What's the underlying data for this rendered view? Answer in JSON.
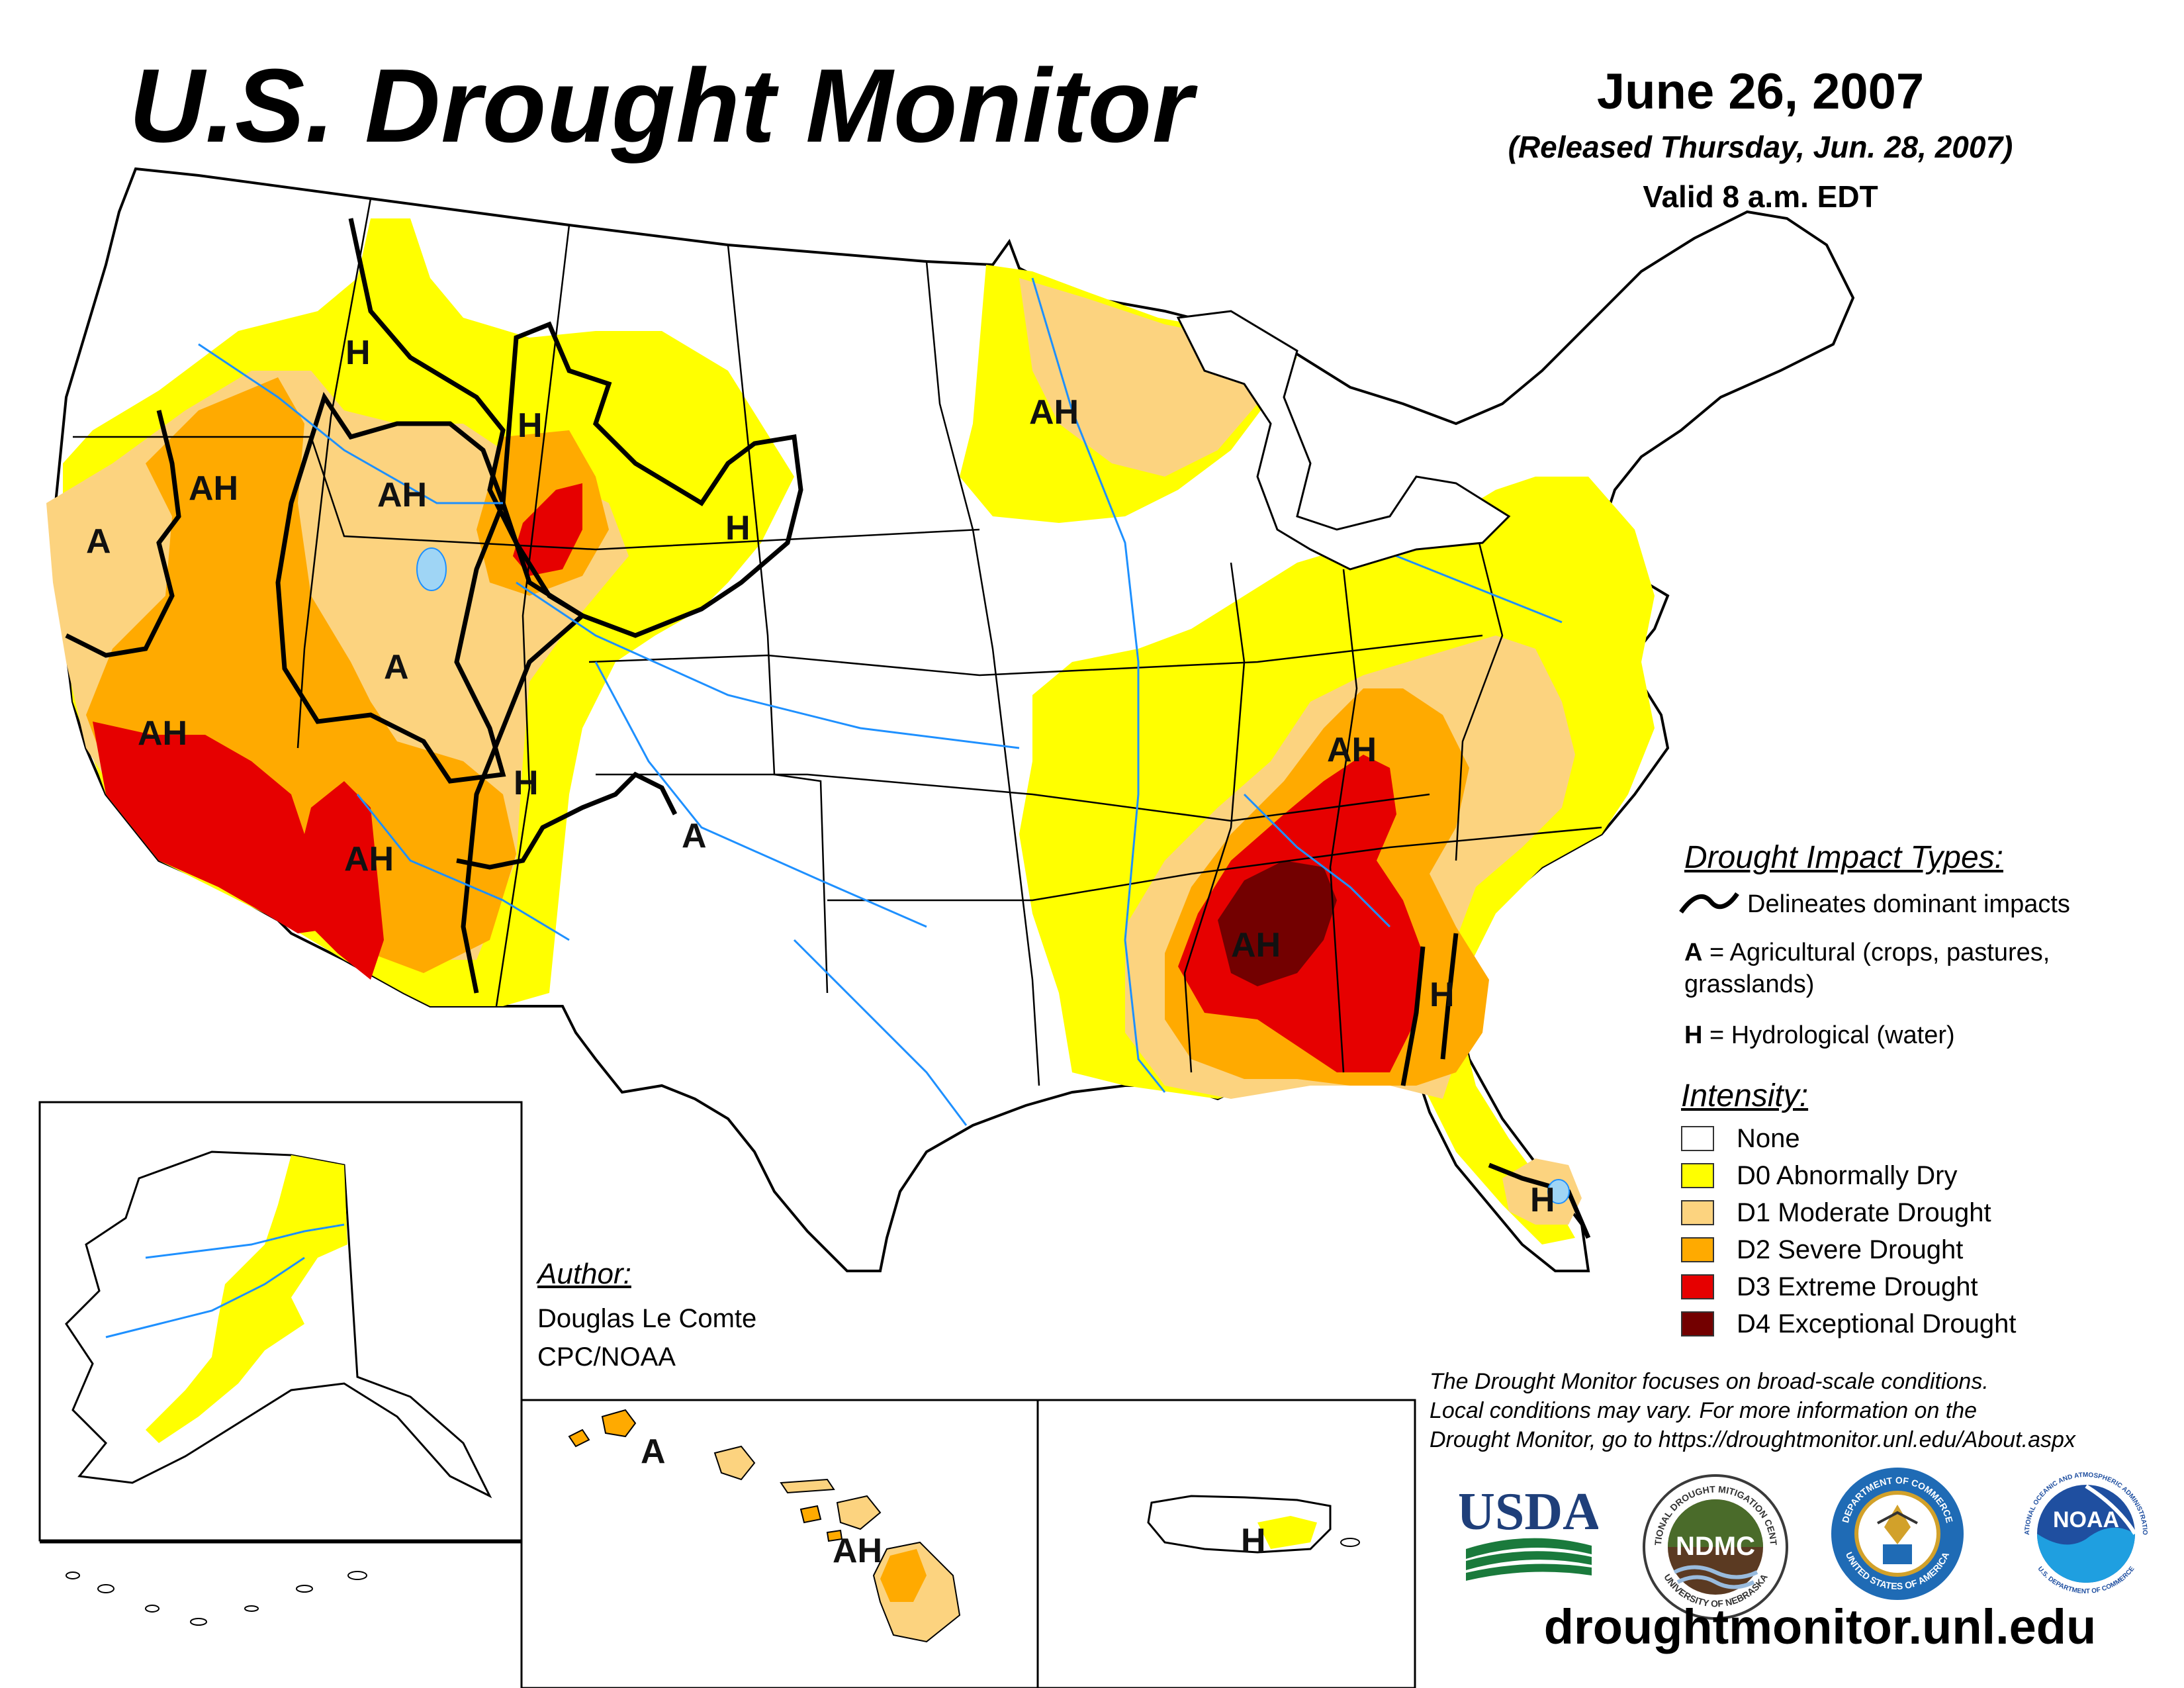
{
  "header": {
    "title": "U.S. Drought Monitor",
    "date": "June 26, 2007",
    "released": "(Released Thursday, Jun. 28, 2007)",
    "valid": "Valid 8 a.m. EDT"
  },
  "impact_legend": {
    "heading": "Drought Impact Types:",
    "delineates": "Delineates dominant impacts",
    "ag_key": "A",
    "ag_text": "= Agricultural (crops, pastures,",
    "ag_text2": "grasslands)",
    "hyd_key": "H",
    "hyd_text": "= Hydrological (water)"
  },
  "intensity_legend": {
    "heading": "Intensity:",
    "items": [
      {
        "label": "None",
        "color": "#ffffff"
      },
      {
        "label": "D0 Abnormally Dry",
        "color": "#ffff00"
      },
      {
        "label": "D1 Moderate Drought",
        "color": "#fcd37f"
      },
      {
        "label": "D2 Severe Drought",
        "color": "#ffaa00"
      },
      {
        "label": "D3 Extreme Drought",
        "color": "#e60000"
      },
      {
        "label": "D4 Exceptional Drought",
        "color": "#730000"
      }
    ]
  },
  "author": {
    "heading": "Author:",
    "name": "Douglas Le Comte",
    "org": "CPC/NOAA"
  },
  "footnote": {
    "line1": "The Drought Monitor focuses on broad-scale conditions.",
    "line2": "Local conditions may vary. For more information on the",
    "line3": "Drought Monitor, go to https://droughtmonitor.unl.edu/About.aspx"
  },
  "logos": {
    "usda": "USDA",
    "ndmc": "NDMC",
    "ndmc_ring_top": "NATIONAL DROUGHT MITIGATION CENTER",
    "ndmc_ring_bottom": "UNIVERSITY OF NEBRASKA",
    "doc_ring_top": "DEPARTMENT OF COMMERCE",
    "doc_ring_bottom": "UNITED STATES OF AMERICA",
    "noaa": "NOAA",
    "noaa_ring_top": "NATIONAL OCEANIC AND ATMOSPHERIC ADMINISTRATION",
    "noaa_ring_bottom": "U.S. DEPARTMENT OF COMMERCE"
  },
  "url": "droughtmonitor.unl.edu",
  "map_labels": [
    {
      "id": "ca-north",
      "text": "A"
    },
    {
      "id": "nv-north",
      "text": "AH"
    },
    {
      "id": "id-south",
      "text": "AH"
    },
    {
      "id": "mt-west",
      "text": "H"
    },
    {
      "id": "wy-west",
      "text": "H"
    },
    {
      "id": "wy-east",
      "text": "H"
    },
    {
      "id": "ut",
      "text": "A"
    },
    {
      "id": "ca-south",
      "text": "AH"
    },
    {
      "id": "az",
      "text": "AH"
    },
    {
      "id": "co-west",
      "text": "H"
    },
    {
      "id": "nm-north",
      "text": "A"
    },
    {
      "id": "mn",
      "text": "AH"
    },
    {
      "id": "ky-tn",
      "text": "AH"
    },
    {
      "id": "al-ms",
      "text": "AH"
    },
    {
      "id": "ga",
      "text": "H"
    },
    {
      "id": "fl",
      "text": "H"
    },
    {
      "id": "hi-kauai",
      "text": "A"
    },
    {
      "id": "hi-maui",
      "text": "AH"
    },
    {
      "id": "pr",
      "text": "H"
    }
  ]
}
